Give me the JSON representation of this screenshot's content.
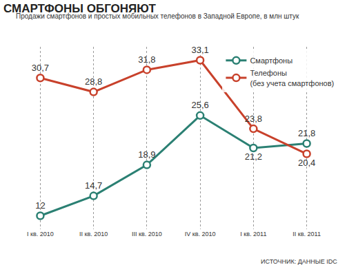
{
  "chart_data": {
    "type": "line",
    "title": "СМАРТФОНЫ ОБГОНЯЮТ",
    "subtitle": "Продажи смартфонов и простых мобильных телефонов в Западной Европе, в млн штук",
    "source": "ИСТОЧНИК: ДАННЫЕ IDC",
    "categories": [
      "I кв. 2010",
      "II кв. 2010",
      "III кв. 2010",
      "IV кв. 2010",
      "I кв. 2011",
      "II кв. 2011"
    ],
    "series": [
      {
        "name": "Смартфоны",
        "color": "#2b8073",
        "marker": "circle",
        "values": [
          12,
          14.7,
          18.9,
          25.6,
          21.2,
          21.8
        ],
        "value_labels": [
          "12",
          "14,7",
          "18,9",
          "25,6",
          "21,2",
          "21,8"
        ]
      },
      {
        "name": "Телефоны\n(без учета смартфонов)",
        "color": "#c8412b",
        "marker": "circle",
        "values": [
          30.7,
          28.8,
          31.8,
          33.1,
          23.8,
          20.4
        ],
        "value_labels": [
          "30,7",
          "28,8",
          "31,8",
          "33,1",
          "23,8",
          "20,4"
        ]
      }
    ],
    "data_labels": true,
    "tick_labels": "x",
    "grid": true,
    "legend": "top right"
  }
}
